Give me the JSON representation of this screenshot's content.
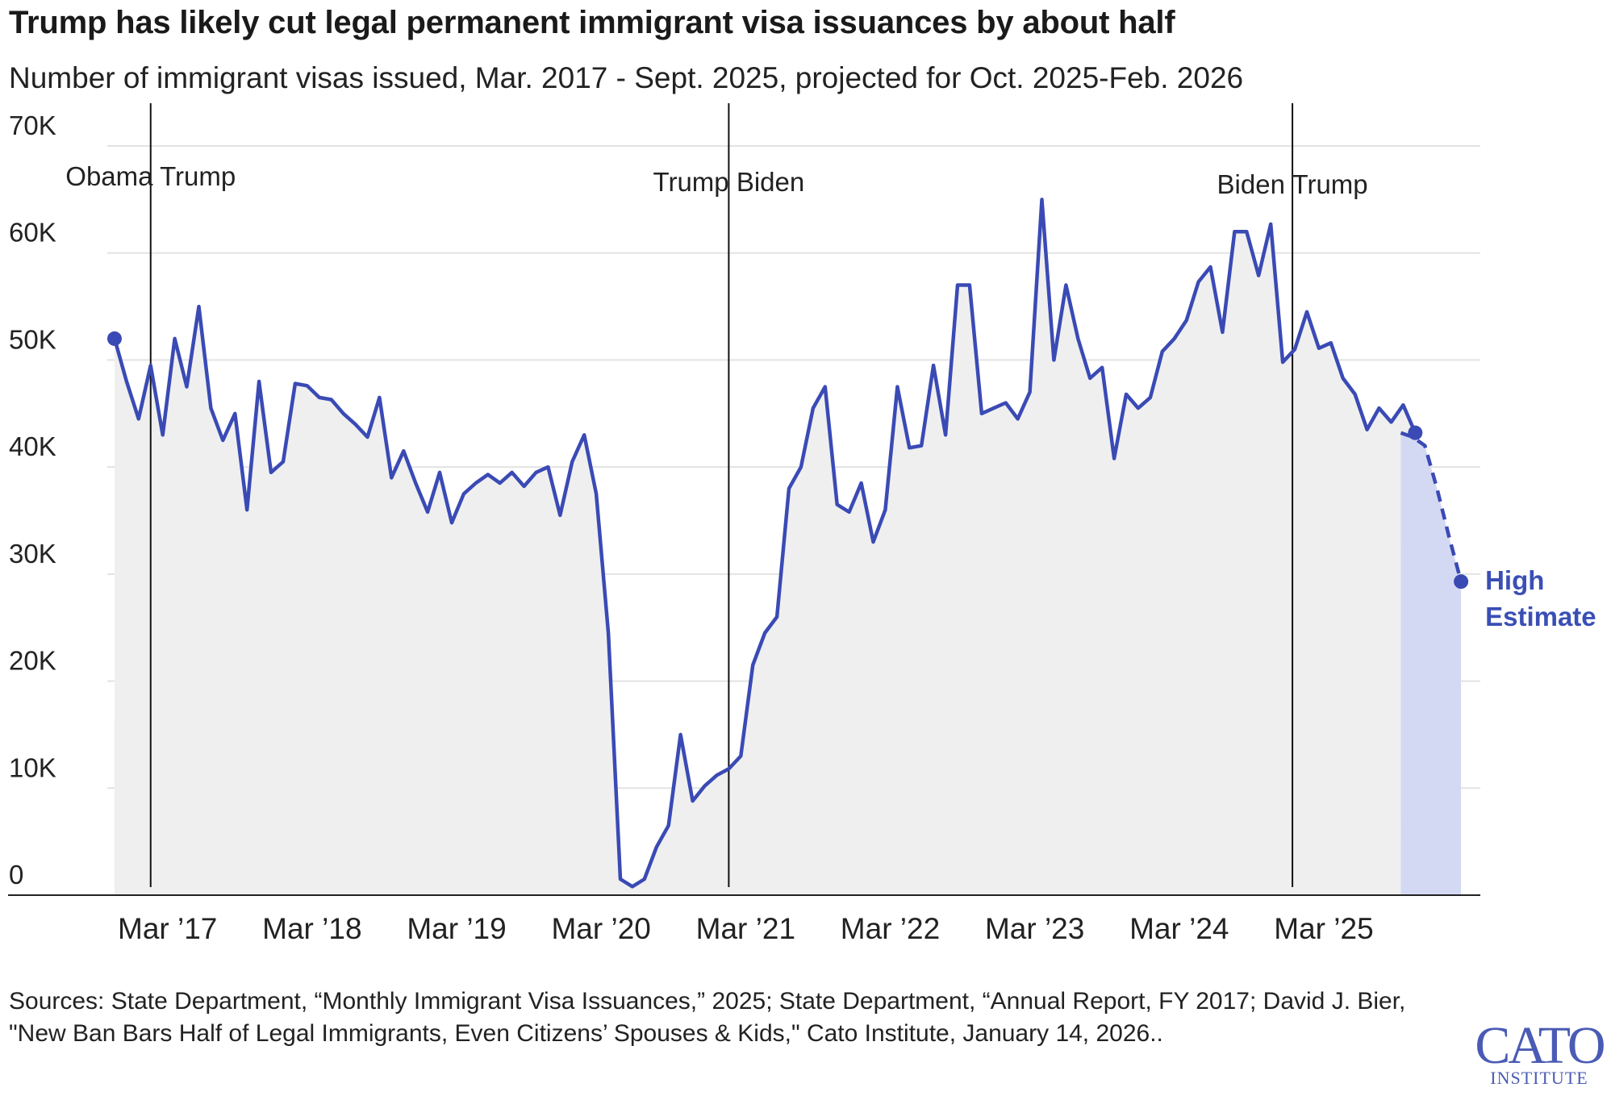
{
  "title": "Trump has likely cut legal permanent immigrant visa issuances by about half",
  "subtitle": "Number of immigrant visas issued, Mar. 2017 - Sept. 2025, projected for Oct. 2025-Feb. 2026",
  "source": "Sources: State Department, “Monthly Immigrant Visa Issuances,” 2025; State Department, “Annual Report, FY 2017; David J. Bier, \"New Ban Bars Half of Legal Immigrants, Even Citizens’ Spouses & Kids,\" Cato Institute, January 14, 2026..",
  "logo": {
    "main": "CATO",
    "sub": "INSTITUTE"
  },
  "colors": {
    "line": "#3a4ab5",
    "actual_fill": "#efefef",
    "projection_fill": "#d4d9f3",
    "gridline": "#e3e3e3"
  },
  "chart_data": {
    "type": "line",
    "title": "Trump has likely cut legal permanent immigrant visa issuances by about half",
    "subtitle": "Number of immigrant visas issued, Mar. 2017 - Sept. 2025, projected for Oct. 2025-Feb. 2026",
    "xlabel": "",
    "ylabel": "",
    "ylim": [
      0,
      70000
    ],
    "yticks": [
      0,
      10000,
      20000,
      30000,
      40000,
      50000,
      60000,
      70000
    ],
    "ytick_labels": [
      "0",
      "10K",
      "20K",
      "30K",
      "40K",
      "50K",
      "60K",
      "70K"
    ],
    "xticks": [
      2017.167,
      2018.167,
      2019.167,
      2020.167,
      2021.167,
      2022.167,
      2023.167,
      2024.167,
      2025.167
    ],
    "xtick_labels": [
      "Mar ’17",
      "Mar ’18",
      "Mar ’19",
      "Mar ’20",
      "Mar ’21",
      "Mar ’22",
      "Mar ’23",
      "Mar ’24",
      "Mar ’25"
    ],
    "grid": true,
    "era_markers": [
      {
        "x": 2017.05,
        "labels": [
          "Obama",
          "Trump"
        ]
      },
      {
        "x": 2021.05,
        "labels": [
          "Trump",
          "Biden"
        ]
      },
      {
        "x": 2024.95,
        "labels": [
          "Biden",
          "Trump"
        ]
      }
    ],
    "series": [
      {
        "style": "solid",
        "x_start": 2016.8,
        "x_step": 0.08333,
        "values": [
          52000,
          48000,
          44500,
          49500,
          43000,
          52000,
          47500,
          55000,
          45500,
          42500,
          45000,
          36000,
          48000,
          39500,
          40500,
          47800,
          47600,
          46500,
          46300,
          45000,
          44000,
          42800,
          46500,
          39000,
          41500,
          38500,
          35800,
          39500,
          34800,
          37500,
          38500,
          39300,
          38500,
          39500,
          38200,
          39500,
          40000,
          35500,
          40500,
          43000,
          37500,
          24500,
          1500,
          800,
          1500,
          4500,
          6500,
          15000,
          8800,
          10200,
          11200,
          11800,
          13000,
          21500,
          24500,
          26000,
          38000,
          40000,
          45500,
          47500,
          36500,
          35800,
          38500,
          33000,
          36000,
          47500,
          41800,
          42000,
          49500,
          43000,
          57000,
          57000,
          45000,
          45500,
          46000,
          44500,
          47000,
          65000,
          50000,
          57000,
          52000,
          48300,
          49300,
          40800,
          46800,
          45500,
          46500,
          50800,
          52000,
          53700,
          57300,
          58700,
          52600,
          62000,
          62000,
          57900,
          62700,
          49800,
          51000,
          54500,
          51100,
          51600,
          48300,
          46800,
          43500,
          45500,
          44200,
          45800,
          43200
        ]
      },
      {
        "name": "High Estimate",
        "style": "dashed",
        "x_start": 2025.7,
        "x_step": 0.08333,
        "values": [
          43200,
          42800,
          42000,
          38000,
          33500,
          29300
        ]
      }
    ]
  }
}
